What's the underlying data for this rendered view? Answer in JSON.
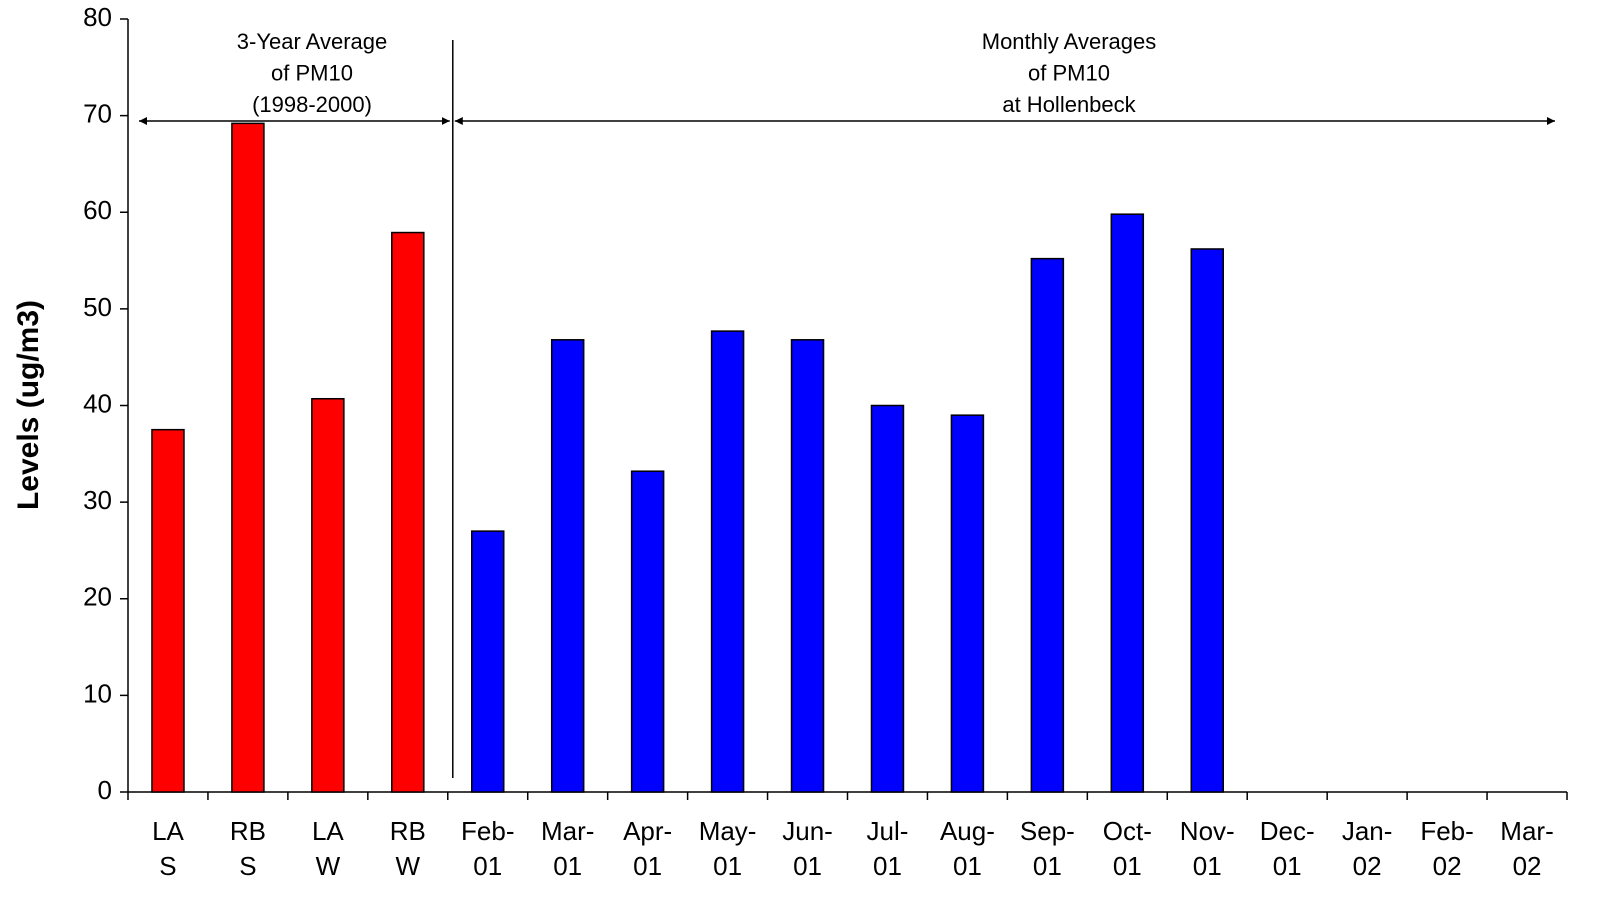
{
  "chart_data": {
    "type": "bar",
    "y_label": "Levels (ug/m3)",
    "annotations": [
      {
        "lines": [
          "3-Year Average",
          "of PM10",
          "(1998-2000)"
        ]
      },
      {
        "lines": [
          "Monthly Averages",
          "of PM10",
          "at Hollenbeck"
        ]
      }
    ],
    "categories": [
      [
        "LA",
        "S"
      ],
      [
        "RB",
        "S"
      ],
      [
        "LA",
        "W"
      ],
      [
        "RB",
        "W"
      ],
      [
        "Feb-",
        "01"
      ],
      [
        "Mar-",
        "01"
      ],
      [
        "Apr-",
        "01"
      ],
      [
        "May-",
        "01"
      ],
      [
        "Jun-",
        "01"
      ],
      [
        "Jul-",
        "01"
      ],
      [
        "Aug-",
        "01"
      ],
      [
        "Sep-",
        "01"
      ],
      [
        "Oct-",
        "01"
      ],
      [
        "Nov-",
        "01"
      ],
      [
        "Dec-",
        "01"
      ],
      [
        "Jan-",
        "02"
      ],
      [
        "Feb-",
        "02"
      ],
      [
        "Mar-",
        "02"
      ]
    ],
    "series": [
      {
        "color": "#ff0000",
        "values": [
          37.5,
          69.2,
          40.7,
          57.9,
          null,
          null,
          null,
          null,
          null,
          null,
          null,
          null,
          null,
          null,
          null,
          null,
          null,
          null
        ]
      },
      {
        "color": "#0000ff",
        "values": [
          null,
          null,
          null,
          null,
          27,
          46.8,
          33.2,
          47.7,
          46.8,
          40,
          39,
          55.2,
          59.8,
          56.2,
          null,
          null,
          null,
          null
        ]
      }
    ],
    "ylim": [
      0,
      80
    ],
    "yticks": [
      0,
      10,
      20,
      30,
      40,
      50,
      60,
      70,
      80
    ]
  }
}
